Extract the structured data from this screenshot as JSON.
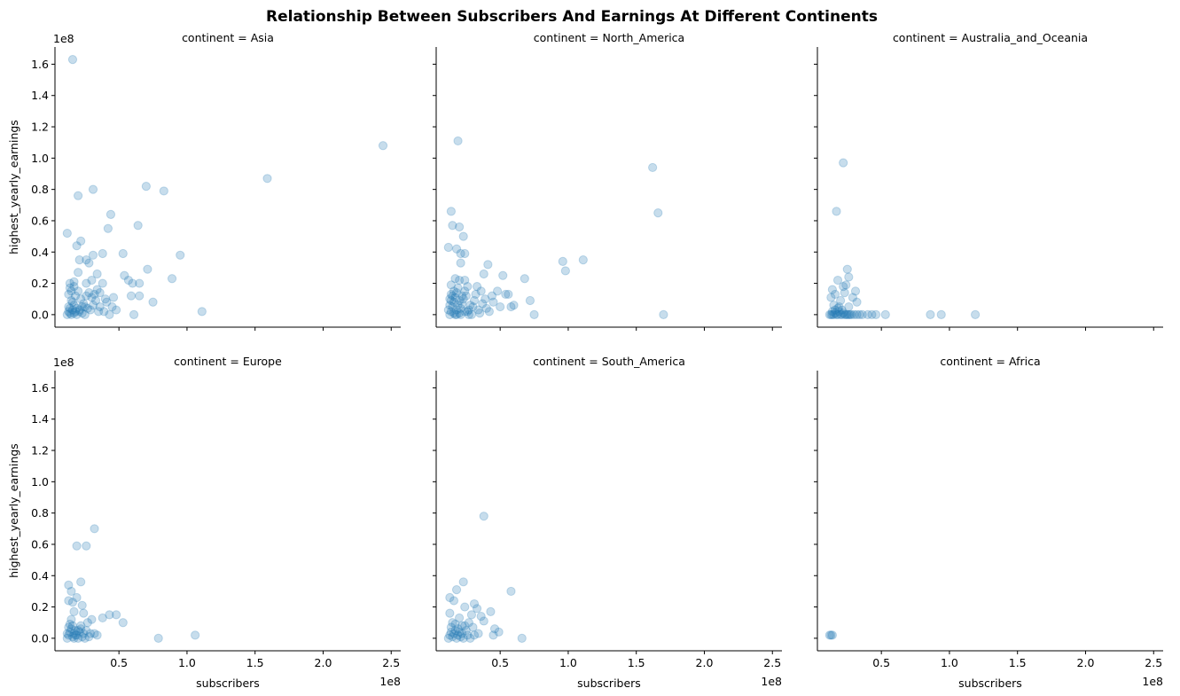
{
  "chart_data": {
    "type": "scatter",
    "title": "Relationship Between Subscribers And Earnings At Different Continents",
    "xlabel": "subscribers",
    "ylabel": "highest_yearly_earnings",
    "x_offset_text": "1e8",
    "y_offset_text": "1e8",
    "xlim": [
      0.03,
      2.57
    ],
    "ylim": [
      -0.08,
      1.71
    ],
    "xticks": [
      0.5,
      1.0,
      1.5,
      2.0,
      2.5
    ],
    "xtick_labels": [
      "0.5",
      "1.0",
      "1.5",
      "2.0",
      "2.5"
    ],
    "yticks": [
      0.0,
      0.2,
      0.4,
      0.6,
      0.8,
      1.0,
      1.2,
      1.4,
      1.6
    ],
    "ytick_labels": [
      "0.0",
      "0.2",
      "0.4",
      "0.6",
      "0.8",
      "1.0",
      "1.2",
      "1.4",
      "1.6"
    ],
    "marker_color": "#1f77b4",
    "marker_alpha": 0.25,
    "panels": [
      {
        "title": "continent = Asia",
        "points": [
          [
            0.16,
            1.63
          ],
          [
            2.44,
            1.08
          ],
          [
            1.59,
            0.87
          ],
          [
            0.7,
            0.82
          ],
          [
            0.83,
            0.79
          ],
          [
            0.31,
            0.8
          ],
          [
            0.2,
            0.76
          ],
          [
            0.44,
            0.64
          ],
          [
            0.64,
            0.57
          ],
          [
            0.42,
            0.55
          ],
          [
            0.12,
            0.52
          ],
          [
            0.22,
            0.47
          ],
          [
            0.19,
            0.44
          ],
          [
            0.53,
            0.39
          ],
          [
            0.95,
            0.38
          ],
          [
            0.38,
            0.39
          ],
          [
            0.31,
            0.38
          ],
          [
            0.26,
            0.35
          ],
          [
            0.21,
            0.35
          ],
          [
            0.28,
            0.33
          ],
          [
            0.71,
            0.29
          ],
          [
            0.2,
            0.27
          ],
          [
            0.34,
            0.26
          ],
          [
            0.54,
            0.25
          ],
          [
            0.89,
            0.23
          ],
          [
            0.57,
            0.22
          ],
          [
            0.6,
            0.2
          ],
          [
            0.65,
            0.2
          ],
          [
            0.3,
            0.22
          ],
          [
            0.26,
            0.2
          ],
          [
            0.17,
            0.21
          ],
          [
            0.14,
            0.2
          ],
          [
            0.38,
            0.2
          ],
          [
            0.34,
            0.16
          ],
          [
            0.46,
            0.11
          ],
          [
            0.59,
            0.12
          ],
          [
            0.65,
            0.12
          ],
          [
            0.75,
            0.08
          ],
          [
            1.11,
            0.02
          ],
          [
            0.61,
            0.0
          ],
          [
            0.43,
            0.0
          ],
          [
            0.35,
            0.02
          ],
          [
            0.25,
            0.05
          ],
          [
            0.14,
            0.17
          ],
          [
            0.13,
            0.13
          ],
          [
            0.15,
            0.09
          ],
          [
            0.17,
            0.06
          ],
          [
            0.19,
            0.04
          ],
          [
            0.21,
            0.02
          ],
          [
            0.23,
            0.01
          ],
          [
            0.25,
            0.0
          ],
          [
            0.15,
            0.0
          ],
          [
            0.13,
            0.02
          ],
          [
            0.14,
            0.04
          ],
          [
            0.16,
            0.08
          ],
          [
            0.18,
            0.12
          ],
          [
            0.2,
            0.15
          ],
          [
            0.22,
            0.1
          ],
          [
            0.24,
            0.07
          ],
          [
            0.27,
            0.04
          ],
          [
            0.29,
            0.03
          ],
          [
            0.31,
            0.06
          ],
          [
            0.33,
            0.09
          ],
          [
            0.36,
            0.05
          ],
          [
            0.39,
            0.02
          ],
          [
            0.41,
            0.08
          ],
          [
            0.45,
            0.05
          ],
          [
            0.48,
            0.03
          ],
          [
            0.17,
            0.01
          ],
          [
            0.19,
            0.0
          ],
          [
            0.21,
            0.03
          ],
          [
            0.23,
            0.05
          ],
          [
            0.12,
            0.0
          ],
          [
            0.13,
            0.05
          ],
          [
            0.14,
            0.01
          ],
          [
            0.16,
            0.03
          ],
          [
            0.18,
            0.02
          ],
          [
            0.26,
            0.12
          ],
          [
            0.28,
            0.14
          ],
          [
            0.3,
            0.11
          ],
          [
            0.32,
            0.13
          ],
          [
            0.36,
            0.14
          ],
          [
            0.4,
            0.1
          ],
          [
            0.15,
            0.15
          ],
          [
            0.17,
            0.18
          ]
        ]
      },
      {
        "title": "continent = North_America",
        "points": [
          [
            0.19,
            1.11
          ],
          [
            1.62,
            0.94
          ],
          [
            1.66,
            0.65
          ],
          [
            0.14,
            0.66
          ],
          [
            0.2,
            0.56
          ],
          [
            0.15,
            0.57
          ],
          [
            0.23,
            0.5
          ],
          [
            0.12,
            0.43
          ],
          [
            0.18,
            0.42
          ],
          [
            0.21,
            0.39
          ],
          [
            0.24,
            0.39
          ],
          [
            0.21,
            0.33
          ],
          [
            0.41,
            0.32
          ],
          [
            0.38,
            0.26
          ],
          [
            0.96,
            0.34
          ],
          [
            1.11,
            0.35
          ],
          [
            0.98,
            0.28
          ],
          [
            0.52,
            0.25
          ],
          [
            0.68,
            0.23
          ],
          [
            0.17,
            0.23
          ],
          [
            0.2,
            0.22
          ],
          [
            0.24,
            0.22
          ],
          [
            0.14,
            0.19
          ],
          [
            0.33,
            0.18
          ],
          [
            0.36,
            0.15
          ],
          [
            0.48,
            0.15
          ],
          [
            0.54,
            0.13
          ],
          [
            0.56,
            0.13
          ],
          [
            0.72,
            0.09
          ],
          [
            0.6,
            0.06
          ],
          [
            0.58,
            0.05
          ],
          [
            0.75,
            0.0
          ],
          [
            1.7,
            0.0
          ],
          [
            0.45,
            0.08
          ],
          [
            0.5,
            0.05
          ],
          [
            0.4,
            0.04
          ],
          [
            0.3,
            0.05
          ],
          [
            0.27,
            0.03
          ],
          [
            0.13,
            0.0
          ],
          [
            0.14,
            0.02
          ],
          [
            0.15,
            0.05
          ],
          [
            0.16,
            0.08
          ],
          [
            0.17,
            0.11
          ],
          [
            0.18,
            0.14
          ],
          [
            0.19,
            0.17
          ],
          [
            0.2,
            0.01
          ],
          [
            0.21,
            0.04
          ],
          [
            0.22,
            0.07
          ],
          [
            0.23,
            0.1
          ],
          [
            0.25,
            0.12
          ],
          [
            0.26,
            0.02
          ],
          [
            0.28,
            0.06
          ],
          [
            0.29,
            0.0
          ],
          [
            0.31,
            0.09
          ],
          [
            0.32,
            0.13
          ],
          [
            0.34,
            0.03
          ],
          [
            0.35,
            0.01
          ],
          [
            0.37,
            0.07
          ],
          [
            0.39,
            0.1
          ],
          [
            0.42,
            0.02
          ],
          [
            0.44,
            0.12
          ],
          [
            0.13,
            0.06
          ],
          [
            0.14,
            0.09
          ],
          [
            0.15,
            0.12
          ],
          [
            0.16,
            0.15
          ],
          [
            0.17,
            0.0
          ],
          [
            0.18,
            0.03
          ],
          [
            0.19,
            0.06
          ],
          [
            0.2,
            0.09
          ],
          [
            0.22,
            0.12
          ],
          [
            0.24,
            0.15
          ],
          [
            0.26,
            0.18
          ],
          [
            0.12,
            0.03
          ],
          [
            0.13,
            0.1
          ],
          [
            0.14,
            0.13
          ],
          [
            0.16,
            0.01
          ],
          [
            0.18,
            0.0
          ],
          [
            0.21,
            0.0
          ],
          [
            0.24,
            0.02
          ],
          [
            0.27,
            0.0
          ]
        ]
      },
      {
        "title": "continent = Australia_and_Oceania",
        "points": [
          [
            0.22,
            0.97
          ],
          [
            0.17,
            0.66
          ],
          [
            0.25,
            0.29
          ],
          [
            0.26,
            0.24
          ],
          [
            0.18,
            0.22
          ],
          [
            0.24,
            0.19
          ],
          [
            0.22,
            0.18
          ],
          [
            0.14,
            0.16
          ],
          [
            0.31,
            0.15
          ],
          [
            0.23,
            0.14
          ],
          [
            0.16,
            0.13
          ],
          [
            0.13,
            0.11
          ],
          [
            0.29,
            0.11
          ],
          [
            0.2,
            0.09
          ],
          [
            0.32,
            0.08
          ],
          [
            0.15,
            0.06
          ],
          [
            0.26,
            0.05
          ],
          [
            0.18,
            0.04
          ],
          [
            0.12,
            0.0
          ],
          [
            0.13,
            0.0
          ],
          [
            0.14,
            0.0
          ],
          [
            0.15,
            0.0
          ],
          [
            0.16,
            0.01
          ],
          [
            0.17,
            0.0
          ],
          [
            0.18,
            0.0
          ],
          [
            0.19,
            0.02
          ],
          [
            0.2,
            0.0
          ],
          [
            0.21,
            0.0
          ],
          [
            0.22,
            0.01
          ],
          [
            0.23,
            0.0
          ],
          [
            0.24,
            0.0
          ],
          [
            0.25,
            0.0
          ],
          [
            0.26,
            0.0
          ],
          [
            0.27,
            0.0
          ],
          [
            0.28,
            0.0
          ],
          [
            0.3,
            0.0
          ],
          [
            0.32,
            0.0
          ],
          [
            0.34,
            0.0
          ],
          [
            0.36,
            0.0
          ],
          [
            0.4,
            0.0
          ],
          [
            0.43,
            0.0
          ],
          [
            0.46,
            0.0
          ],
          [
            0.53,
            0.0
          ],
          [
            0.86,
            0.0
          ],
          [
            0.94,
            0.0
          ],
          [
            1.19,
            0.0
          ],
          [
            0.14,
            0.02
          ],
          [
            0.16,
            0.03
          ],
          [
            0.19,
            0.05
          ],
          [
            0.21,
            0.03
          ]
        ]
      },
      {
        "title": "continent = Europe",
        "points": [
          [
            0.32,
            0.7
          ],
          [
            0.19,
            0.59
          ],
          [
            0.26,
            0.59
          ],
          [
            0.22,
            0.36
          ],
          [
            0.13,
            0.34
          ],
          [
            0.15,
            0.3
          ],
          [
            0.19,
            0.26
          ],
          [
            0.13,
            0.24
          ],
          [
            0.16,
            0.23
          ],
          [
            0.23,
            0.21
          ],
          [
            0.17,
            0.17
          ],
          [
            0.24,
            0.16
          ],
          [
            0.38,
            0.13
          ],
          [
            0.43,
            0.15
          ],
          [
            0.48,
            0.15
          ],
          [
            0.53,
            0.1
          ],
          [
            0.3,
            0.12
          ],
          [
            0.27,
            0.1
          ],
          [
            1.06,
            0.02
          ],
          [
            0.79,
            0.0
          ],
          [
            0.32,
            0.03
          ],
          [
            0.34,
            0.02
          ],
          [
            0.28,
            0.01
          ],
          [
            0.12,
            0.0
          ],
          [
            0.13,
            0.02
          ],
          [
            0.14,
            0.04
          ],
          [
            0.15,
            0.06
          ],
          [
            0.16,
            0.01
          ],
          [
            0.17,
            0.03
          ],
          [
            0.18,
            0.05
          ],
          [
            0.19,
            0.02
          ],
          [
            0.2,
            0.0
          ],
          [
            0.21,
            0.04
          ],
          [
            0.22,
            0.06
          ],
          [
            0.23,
            0.01
          ],
          [
            0.24,
            0.03
          ],
          [
            0.25,
            0.0
          ],
          [
            0.14,
            0.09
          ],
          [
            0.15,
            0.12
          ],
          [
            0.13,
            0.07
          ],
          [
            0.16,
            0.08
          ],
          [
            0.12,
            0.03
          ],
          [
            0.17,
            0.0
          ],
          [
            0.18,
            0.02
          ],
          [
            0.2,
            0.05
          ],
          [
            0.22,
            0.08
          ],
          [
            0.26,
            0.05
          ],
          [
            0.29,
            0.03
          ]
        ]
      },
      {
        "title": "continent = South_America",
        "points": [
          [
            0.38,
            0.78
          ],
          [
            0.23,
            0.36
          ],
          [
            0.18,
            0.31
          ],
          [
            0.58,
            0.3
          ],
          [
            0.13,
            0.26
          ],
          [
            0.16,
            0.24
          ],
          [
            0.31,
            0.22
          ],
          [
            0.33,
            0.19
          ],
          [
            0.24,
            0.2
          ],
          [
            0.43,
            0.17
          ],
          [
            0.13,
            0.16
          ],
          [
            0.29,
            0.15
          ],
          [
            0.36,
            0.14
          ],
          [
            0.2,
            0.13
          ],
          [
            0.38,
            0.11
          ],
          [
            0.27,
            0.1
          ],
          [
            0.15,
            0.1
          ],
          [
            0.22,
            0.08
          ],
          [
            0.3,
            0.07
          ],
          [
            0.46,
            0.06
          ],
          [
            0.49,
            0.04
          ],
          [
            0.45,
            0.02
          ],
          [
            0.66,
            0.0
          ],
          [
            0.34,
            0.03
          ],
          [
            0.26,
            0.02
          ],
          [
            0.12,
            0.0
          ],
          [
            0.13,
            0.02
          ],
          [
            0.14,
            0.04
          ],
          [
            0.15,
            0.01
          ],
          [
            0.16,
            0.03
          ],
          [
            0.17,
            0.05
          ],
          [
            0.18,
            0.0
          ],
          [
            0.19,
            0.02
          ],
          [
            0.2,
            0.04
          ],
          [
            0.21,
            0.01
          ],
          [
            0.22,
            0.03
          ],
          [
            0.23,
            0.0
          ],
          [
            0.25,
            0.05
          ],
          [
            0.28,
            0.0
          ],
          [
            0.31,
            0.02
          ],
          [
            0.14,
            0.07
          ],
          [
            0.17,
            0.09
          ],
          [
            0.19,
            0.06
          ],
          [
            0.24,
            0.08
          ]
        ]
      },
      {
        "title": "continent = Africa",
        "points": [
          [
            0.12,
            0.02
          ],
          [
            0.13,
            0.02
          ],
          [
            0.14,
            0.02
          ]
        ]
      }
    ]
  }
}
